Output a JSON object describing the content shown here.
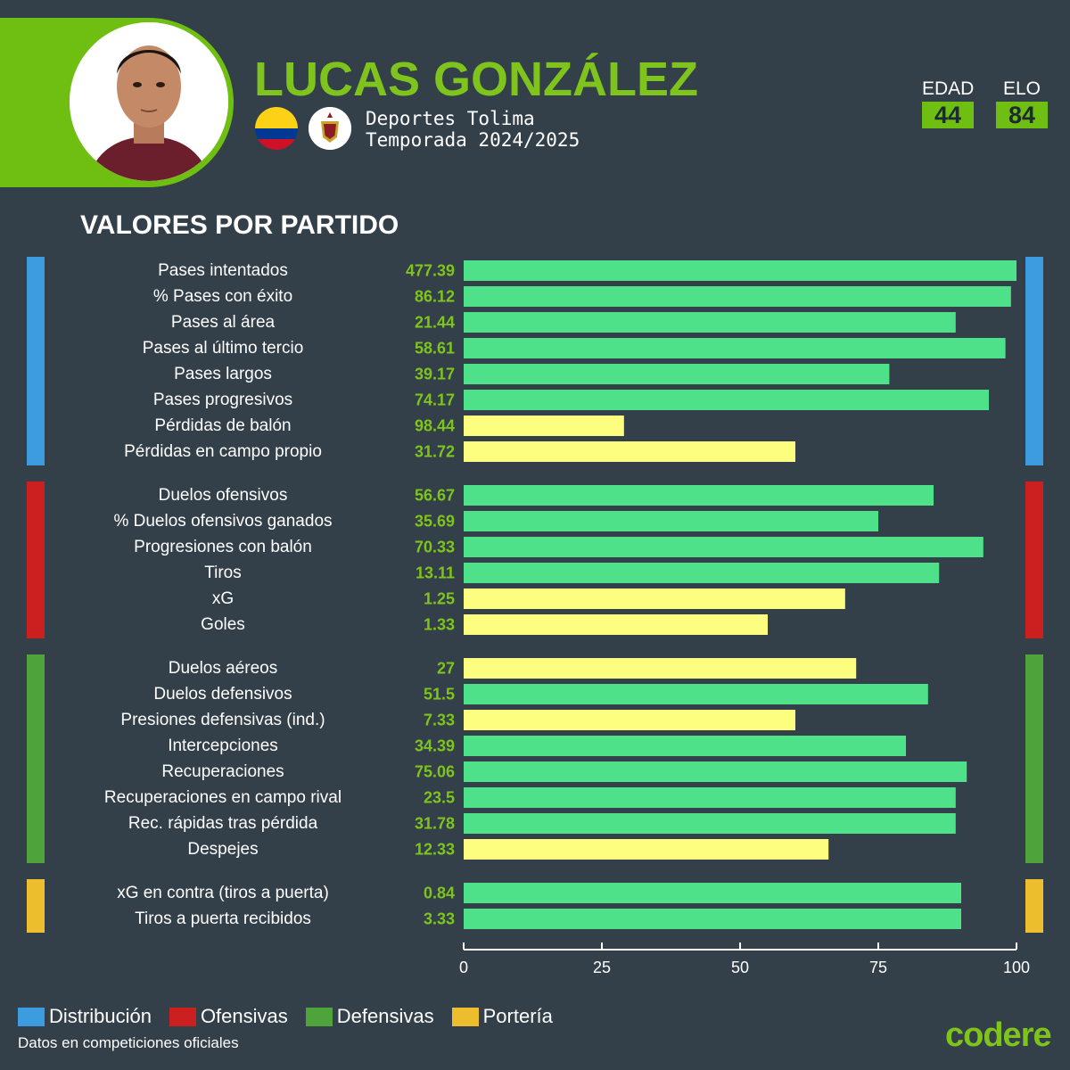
{
  "header": {
    "player_name": "LUCAS GONZÁLEZ",
    "team": "Deportes Tolima",
    "season": "Temporada 2024/2025",
    "flag_icon": "colombia-flag-icon",
    "crest_icon": "deportes-tolima-crest-icon",
    "age_label": "EDAD",
    "age_value": "44",
    "elo_label": "ELO",
    "elo_value": "84",
    "accent_color": "#6fbe12"
  },
  "section_title": "VALORES POR PARTIDO",
  "chart_data": {
    "type": "bar",
    "orientation": "horizontal",
    "xlim": [
      0,
      100
    ],
    "xticks": [
      0,
      25,
      50,
      75,
      100
    ],
    "grid": false,
    "groups": [
      {
        "name": "Distribución",
        "color": "#3d9be0",
        "rows": [
          {
            "label": "Pases intentados",
            "value_label": "477.39",
            "percentile": 100,
            "bar_color": "#4fe08a"
          },
          {
            "label": "% Pases con éxito",
            "value_label": "86.12",
            "percentile": 99,
            "bar_color": "#4fe08a"
          },
          {
            "label": "Pases al área",
            "value_label": "21.44",
            "percentile": 89,
            "bar_color": "#4fe08a"
          },
          {
            "label": "Pases al último tercio",
            "value_label": "58.61",
            "percentile": 98,
            "bar_color": "#4fe08a"
          },
          {
            "label": "Pases largos",
            "value_label": "39.17",
            "percentile": 77,
            "bar_color": "#4fe08a"
          },
          {
            "label": "Pases progresivos",
            "value_label": "74.17",
            "percentile": 95,
            "bar_color": "#4fe08a"
          },
          {
            "label": "Pérdidas de balón",
            "value_label": "98.44",
            "percentile": 29,
            "bar_color": "#fdfd80"
          },
          {
            "label": "Pérdidas en campo propio",
            "value_label": "31.72",
            "percentile": 60,
            "bar_color": "#fdfd80"
          }
        ]
      },
      {
        "name": "Ofensivas",
        "color": "#cc1f1f",
        "rows": [
          {
            "label": "Duelos ofensivos",
            "value_label": "56.67",
            "percentile": 85,
            "bar_color": "#4fe08a"
          },
          {
            "label": "% Duelos ofensivos ganados",
            "value_label": "35.69",
            "percentile": 75,
            "bar_color": "#4fe08a"
          },
          {
            "label": "Progresiones con balón",
            "value_label": "70.33",
            "percentile": 94,
            "bar_color": "#4fe08a"
          },
          {
            "label": "Tiros",
            "value_label": "13.11",
            "percentile": 86,
            "bar_color": "#4fe08a"
          },
          {
            "label": "xG",
            "value_label": "1.25",
            "percentile": 69,
            "bar_color": "#fdfd80"
          },
          {
            "label": "Goles",
            "value_label": "1.33",
            "percentile": 55,
            "bar_color": "#fdfd80"
          }
        ]
      },
      {
        "name": "Defensivas",
        "color": "#4ea33a",
        "rows": [
          {
            "label": "Duelos aéreos",
            "value_label": "27",
            "percentile": 71,
            "bar_color": "#fdfd80"
          },
          {
            "label": "Duelos defensivos",
            "value_label": "51.5",
            "percentile": 84,
            "bar_color": "#4fe08a"
          },
          {
            "label": "Presiones defensivas (ind.)",
            "value_label": "7.33",
            "percentile": 60,
            "bar_color": "#fdfd80"
          },
          {
            "label": "Intercepciones",
            "value_label": "34.39",
            "percentile": 80,
            "bar_color": "#4fe08a"
          },
          {
            "label": "Recuperaciones",
            "value_label": "75.06",
            "percentile": 91,
            "bar_color": "#4fe08a"
          },
          {
            "label": "Recuperaciones en campo rival",
            "value_label": "23.5",
            "percentile": 89,
            "bar_color": "#4fe08a"
          },
          {
            "label": "Rec. rápidas tras pérdida",
            "value_label": "31.78",
            "percentile": 89,
            "bar_color": "#4fe08a"
          },
          {
            "label": "Despejes",
            "value_label": "12.33",
            "percentile": 66,
            "bar_color": "#fdfd80"
          }
        ]
      },
      {
        "name": "Portería",
        "color": "#ecbd2c",
        "rows": [
          {
            "label": "xG en contra (tiros a puerta)",
            "value_label": "0.84",
            "percentile": 90,
            "bar_color": "#4fe08a"
          },
          {
            "label": "Tiros a puerta recibidos",
            "value_label": "3.33",
            "percentile": 90,
            "bar_color": "#4fe08a"
          }
        ]
      }
    ],
    "value_label_color": "#7fc41c"
  },
  "legend": [
    {
      "label": "Distribución",
      "color": "#3d9be0"
    },
    {
      "label": "Ofensivas",
      "color": "#cc1f1f"
    },
    {
      "label": "Defensivas",
      "color": "#4ea33a"
    },
    {
      "label": "Portería",
      "color": "#ecbd2c"
    }
  ],
  "footnote": "Datos en competiciones oficiales",
  "brand": "codere"
}
